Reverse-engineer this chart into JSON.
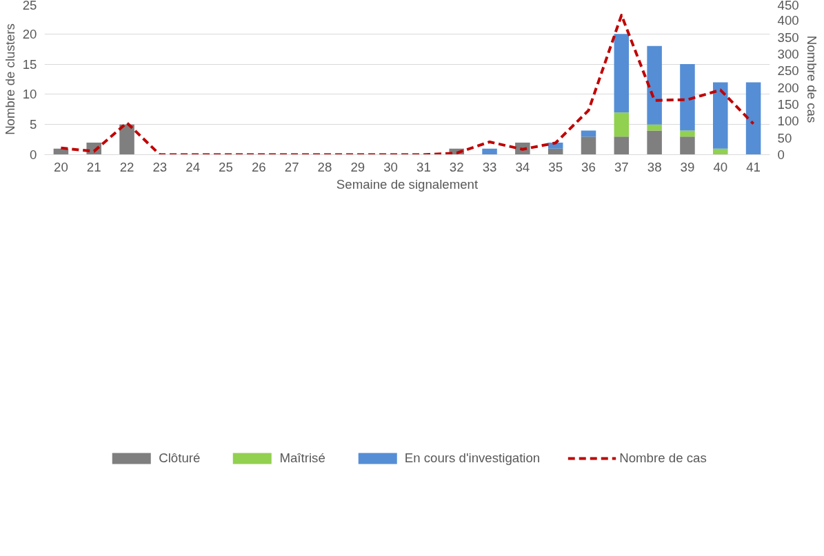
{
  "chart_data": {
    "type": "bar",
    "stacked": true,
    "xlabel": "Semaine de signalement",
    "ylabel": "Nombre de clusters",
    "y2label": "Nombre de cas",
    "categories": [
      "20",
      "21",
      "22",
      "23",
      "24",
      "25",
      "26",
      "27",
      "28",
      "29",
      "30",
      "31",
      "32",
      "33",
      "34",
      "35",
      "36",
      "37",
      "38",
      "39",
      "40",
      "41"
    ],
    "series": [
      {
        "name": "Clôturé",
        "color": "#7f7f7f",
        "values": [
          1,
          2,
          5,
          0,
          0,
          0,
          0,
          0,
          0,
          0,
          0,
          0,
          1,
          0,
          2,
          1,
          3,
          3,
          4,
          3,
          0,
          0
        ]
      },
      {
        "name": "Maîtrisé",
        "color": "#92d050",
        "values": [
          0,
          0,
          0,
          0,
          0,
          0,
          0,
          0,
          0,
          0,
          0,
          0,
          0,
          0,
          0,
          0,
          0,
          4,
          1,
          1,
          1,
          0
        ]
      },
      {
        "name": "En cours d'investigation",
        "color": "#558ed5",
        "values": [
          0,
          0,
          0,
          0,
          0,
          0,
          0,
          0,
          0,
          0,
          0,
          0,
          0,
          1,
          0,
          1,
          1,
          13,
          13,
          11,
          11,
          12
        ]
      },
      {
        "name": "Nombre de cas",
        "type": "line",
        "axis": "y2",
        "color": "#c00000",
        "line_style": "dashed",
        "values": [
          20,
          10,
          95,
          0,
          0,
          0,
          0,
          0,
          0,
          0,
          0,
          0,
          5,
          38,
          16,
          35,
          132,
          416,
          162,
          164,
          193,
          92
        ]
      }
    ],
    "ylim": [
      0,
      25
    ],
    "yticks": [
      0,
      5,
      10,
      15,
      20,
      25
    ],
    "y2lim": [
      0,
      450
    ],
    "y2ticks": [
      0,
      50,
      100,
      150,
      200,
      250,
      300,
      350,
      400,
      450
    ],
    "grid": "y",
    "legend": "bottom"
  }
}
